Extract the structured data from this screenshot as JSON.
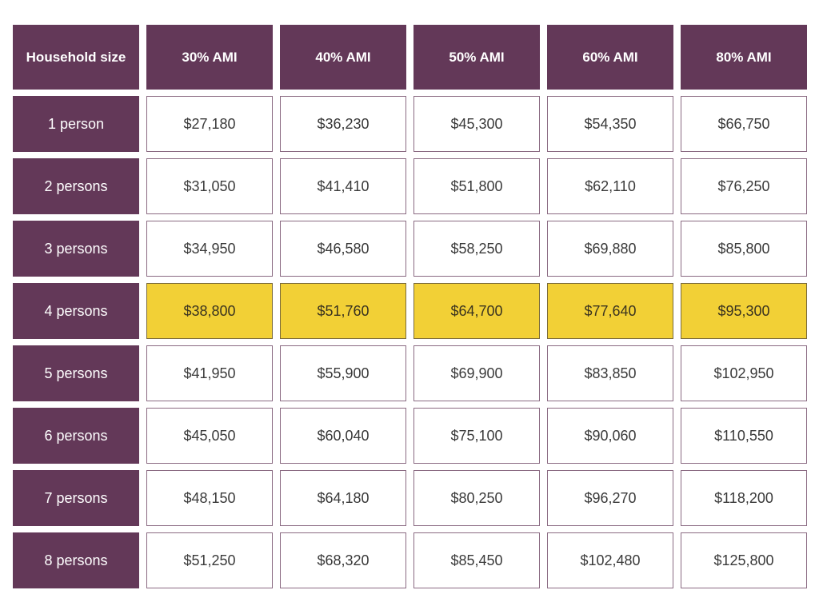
{
  "chart_data": {
    "type": "table",
    "columns": [
      "Household size",
      "30% AMI",
      "40% AMI",
      "50% AMI",
      "60% AMI",
      "80% AMI"
    ],
    "rows": [
      {
        "label": "1 person",
        "values": [
          "$27,180",
          "$36,230",
          "$45,300",
          "$54,350",
          "$66,750"
        ]
      },
      {
        "label": "2 persons",
        "values": [
          "$31,050",
          "$41,410",
          "$51,800",
          "$62,110",
          "$76,250"
        ]
      },
      {
        "label": "3 persons",
        "values": [
          "$34,950",
          "$46,580",
          "$58,250",
          "$69,880",
          "$85,800"
        ]
      },
      {
        "label": "4 persons",
        "values": [
          "$38,800",
          "$51,760",
          "$64,700",
          "$77,640",
          "$95,300"
        ],
        "highlighted": true
      },
      {
        "label": "5 persons",
        "values": [
          "$41,950",
          "$55,900",
          "$69,900",
          "$83,850",
          "$102,950"
        ]
      },
      {
        "label": "6 persons",
        "values": [
          "$45,050",
          "$60,040",
          "$75,100",
          "$90,060",
          "$110,550"
        ]
      },
      {
        "label": "7 persons",
        "values": [
          "$48,150",
          "$64,180",
          "$80,250",
          "$96,270",
          "$118,200"
        ]
      },
      {
        "label": "8 persons",
        "values": [
          "$51,250",
          "$68,320",
          "$85,450",
          "$102,480",
          "$125,800"
        ]
      }
    ],
    "colors": {
      "header": "#633858",
      "highlight": "#f2d036",
      "border": "#8a6a82"
    }
  }
}
